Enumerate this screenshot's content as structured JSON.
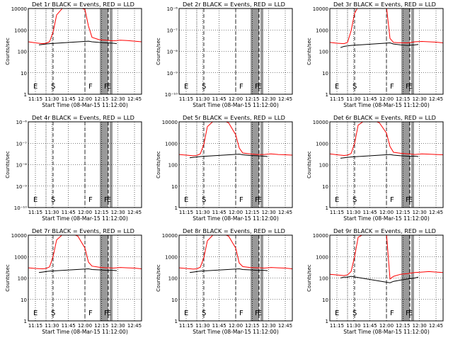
{
  "figure": {
    "background": "#ffffff",
    "axis_color": "#000000",
    "events_color": "#000000",
    "lld_color": "#ff0000"
  },
  "chart_data": [
    {
      "type": "line",
      "detector": "1r",
      "title": "Det 1r BLACK = Events, RED = LLD",
      "ylabel": "Counts/sec",
      "xlabel": "Start Time (08-Mar-15 11:12:00)",
      "xlim": [
        11.2,
        12.8
      ],
      "ylim": [
        1,
        10000
      ],
      "yscale": "log",
      "xticks": [
        "11:15",
        "11:30",
        "11:45",
        "12:00",
        "12:15",
        "12:30",
        "12:45"
      ],
      "yticks": [
        "1",
        "10",
        "100",
        "1000",
        "10000"
      ],
      "markers": [
        {
          "label": "E",
          "x": 11.27
        },
        {
          "label": "S",
          "x": 11.52
        },
        {
          "label": "F",
          "x": 12.05
        },
        {
          "label": "F",
          "x": 12.27
        },
        {
          "label": "E",
          "x": 12.31
        }
      ],
      "series": [
        {
          "name": "LLD",
          "color": "#ff0000",
          "x": [
            11.2,
            11.3,
            11.4,
            11.45,
            11.5,
            11.55,
            11.6,
            11.7,
            11.8,
            11.9,
            12.0,
            12.05,
            12.1,
            12.2,
            12.3,
            12.35,
            12.4,
            12.5,
            12.6,
            12.7,
            12.8
          ],
          "y": [
            280,
            250,
            230,
            240,
            280,
            800,
            5000,
            12000,
            12000,
            12000,
            9000,
            1500,
            450,
            350,
            330,
            320,
            310,
            330,
            320,
            300,
            280
          ]
        },
        {
          "name": "Events",
          "color": "#000000",
          "x": [
            11.35,
            11.4,
            11.45,
            11.5,
            12.05,
            12.1,
            12.2,
            12.3,
            12.4,
            12.45
          ],
          "y": [
            200,
            210,
            220,
            230,
            300,
            280,
            260,
            250,
            240,
            230
          ]
        }
      ]
    },
    {
      "type": "line",
      "detector": "2r",
      "title": "Det 2r BLACK = Events, RED = LLD",
      "ylabel": "Counts/sec",
      "xlabel": "Start Time (08-Mar-15 11:12:00)",
      "xlim": [
        11.2,
        12.8
      ],
      "ylim": [
        1e-10,
        1e-06
      ],
      "yscale": "log",
      "xticks": [
        "11:15",
        "11:30",
        "11:45",
        "12:00",
        "12:15",
        "12:30",
        "12:45"
      ],
      "yticks": [
        "10⁻¹⁰",
        "10⁻⁹",
        "10⁻⁸",
        "10⁻⁷",
        "10⁻⁶"
      ],
      "markers": [
        {
          "label": "E",
          "x": 11.27
        },
        {
          "label": "S",
          "x": 11.52
        },
        {
          "label": "F",
          "x": 12.05
        },
        {
          "label": "F",
          "x": 12.27
        },
        {
          "label": "E",
          "x": 12.31
        }
      ],
      "series": []
    },
    {
      "type": "line",
      "detector": "3r",
      "title": "Det 3r BLACK = Events, RED = LLD",
      "ylabel": "Counts/sec",
      "xlabel": "Start Time (08-Mar-15 11:12:00)",
      "xlim": [
        11.2,
        12.8
      ],
      "ylim": [
        1,
        10000
      ],
      "yscale": "log",
      "xticks": [
        "11:15",
        "11:30",
        "11:45",
        "12:00",
        "12:15",
        "12:30",
        "12:45"
      ],
      "yticks": [
        "1",
        "10",
        "100",
        "1000",
        "10000"
      ],
      "markers": [
        {
          "label": "E",
          "x": 11.27
        },
        {
          "label": "S",
          "x": 11.52
        },
        {
          "label": "F",
          "x": 12.05
        },
        {
          "label": "F",
          "x": 12.27
        },
        {
          "label": "E",
          "x": 12.31
        }
      ],
      "series": [
        {
          "name": "LLD",
          "color": "#ff0000",
          "x": [
            11.2,
            11.3,
            11.4,
            11.45,
            11.5,
            11.55,
            11.6,
            11.7,
            11.8,
            11.9,
            12.0,
            12.05,
            12.1,
            12.2,
            12.3,
            12.35,
            12.4,
            12.5,
            12.6,
            12.7,
            12.8
          ],
          "y": [
            260,
            240,
            230,
            260,
            900,
            6000,
            12000,
            12000,
            12000,
            12000,
            12000,
            400,
            260,
            250,
            250,
            260,
            280,
            290,
            280,
            270,
            250
          ]
        },
        {
          "name": "Events",
          "color": "#000000",
          "x": [
            11.35,
            11.4,
            11.45,
            11.5,
            12.05,
            12.1,
            12.2,
            12.3,
            12.4,
            12.45
          ],
          "y": [
            150,
            170,
            180,
            190,
            250,
            220,
            200,
            190,
            200,
            210
          ]
        }
      ]
    },
    {
      "type": "line",
      "detector": "4r",
      "title": "Det 4r BLACK = Events, RED = LLD",
      "ylabel": "Counts/sec",
      "xlabel": "Start Time (08-Mar-15 11:12:00)",
      "xlim": [
        11.2,
        12.8
      ],
      "ylim": [
        1e-10,
        1e-06
      ],
      "yscale": "log",
      "xticks": [
        "11:15",
        "11:30",
        "11:45",
        "12:00",
        "12:15",
        "12:30",
        "12:45"
      ],
      "yticks": [
        "10⁻¹⁰",
        "10⁻⁹",
        "10⁻⁸",
        "10⁻⁷",
        "10⁻⁶"
      ],
      "markers": [
        {
          "label": "E",
          "x": 11.27
        },
        {
          "label": "S",
          "x": 11.52
        },
        {
          "label": "F",
          "x": 12.05
        },
        {
          "label": "F",
          "x": 12.27
        },
        {
          "label": "E",
          "x": 12.31
        }
      ],
      "series": []
    },
    {
      "type": "line",
      "detector": "5r",
      "title": "Det 5r BLACK = Events, RED = LLD",
      "ylabel": "Counts/sec",
      "xlabel": "Start Time (08-Mar-15 11:12:00)",
      "xlim": [
        11.2,
        12.8
      ],
      "ylim": [
        1,
        10000
      ],
      "yscale": "log",
      "xticks": [
        "11:15",
        "11:30",
        "11:45",
        "12:00",
        "12:15",
        "12:30",
        "12:45"
      ],
      "yticks": [
        "1",
        "10",
        "100",
        "1000",
        "10000"
      ],
      "markers": [
        {
          "label": "E",
          "x": 11.27
        },
        {
          "label": "S",
          "x": 11.52
        },
        {
          "label": "F",
          "x": 12.05
        },
        {
          "label": "F",
          "x": 12.27
        },
        {
          "label": "E",
          "x": 12.31
        }
      ],
      "series": [
        {
          "name": "LLD",
          "color": "#ff0000",
          "x": [
            11.2,
            11.3,
            11.4,
            11.45,
            11.5,
            11.55,
            11.6,
            11.7,
            11.8,
            11.9,
            12.0,
            12.05,
            12.1,
            12.2,
            12.3,
            12.35,
            12.4,
            12.5,
            12.6,
            12.7,
            12.8
          ],
          "y": [
            300,
            280,
            260,
            270,
            320,
            900,
            6000,
            12000,
            12000,
            9000,
            2500,
            600,
            350,
            320,
            300,
            300,
            300,
            320,
            300,
            290,
            280
          ]
        },
        {
          "name": "Events",
          "color": "#000000",
          "x": [
            11.35,
            11.4,
            11.45,
            11.5,
            12.05,
            12.1,
            12.2,
            12.3,
            12.4,
            12.45
          ],
          "y": [
            210,
            220,
            230,
            240,
            310,
            290,
            270,
            260,
            250,
            240
          ]
        }
      ]
    },
    {
      "type": "line",
      "detector": "6r",
      "title": "Det 6r BLACK = Events, RED = LLD",
      "ylabel": "Counts/sec",
      "xlabel": "Start Time (08-Mar-15 11:12:00)",
      "xlim": [
        11.2,
        12.8
      ],
      "ylim": [
        1,
        10000
      ],
      "yscale": "log",
      "xticks": [
        "11:15",
        "11:30",
        "11:45",
        "12:00",
        "12:15",
        "12:30",
        "12:45"
      ],
      "yticks": [
        "1",
        "10",
        "100",
        "1000",
        "10000"
      ],
      "markers": [
        {
          "label": "E",
          "x": 11.27
        },
        {
          "label": "S",
          "x": 11.52
        },
        {
          "label": "F",
          "x": 12.05
        },
        {
          "label": "F",
          "x": 12.27
        },
        {
          "label": "E",
          "x": 12.31
        }
      ],
      "series": [
        {
          "name": "LLD",
          "color": "#ff0000",
          "x": [
            11.2,
            11.3,
            11.4,
            11.45,
            11.5,
            11.55,
            11.6,
            11.7,
            11.8,
            11.9,
            12.0,
            12.05,
            12.1,
            12.2,
            12.3,
            12.35,
            12.4,
            12.5,
            12.6,
            12.7,
            12.8
          ],
          "y": [
            320,
            290,
            270,
            280,
            330,
            1000,
            7000,
            12000,
            12000,
            9000,
            3000,
            700,
            380,
            340,
            320,
            310,
            300,
            320,
            310,
            300,
            290
          ]
        },
        {
          "name": "Events",
          "color": "#000000",
          "x": [
            11.35,
            11.4,
            11.45,
            11.5,
            12.05,
            12.1,
            12.2,
            12.3,
            12.4,
            12.45
          ],
          "y": [
            200,
            210,
            220,
            230,
            300,
            280,
            260,
            250,
            250,
            240
          ]
        }
      ]
    },
    {
      "type": "line",
      "detector": "7r",
      "title": "Det 7r BLACK = Events, RED = LLD",
      "ylabel": "Counts/sec",
      "xlabel": "Start Time (08-Mar-15 11:12:00)",
      "xlim": [
        11.2,
        12.8
      ],
      "ylim": [
        1,
        10000
      ],
      "yscale": "log",
      "xticks": [
        "11:15",
        "11:30",
        "11:45",
        "12:00",
        "12:15",
        "12:30",
        "12:45"
      ],
      "yticks": [
        "1",
        "10",
        "100",
        "1000",
        "10000"
      ],
      "markers": [
        {
          "label": "E",
          "x": 11.27
        },
        {
          "label": "S",
          "x": 11.52
        },
        {
          "label": "F",
          "x": 12.05
        },
        {
          "label": "F",
          "x": 12.27
        },
        {
          "label": "E",
          "x": 12.31
        }
      ],
      "series": [
        {
          "name": "LLD",
          "color": "#ff0000",
          "x": [
            11.2,
            11.3,
            11.4,
            11.45,
            11.5,
            11.55,
            11.6,
            11.7,
            11.8,
            11.9,
            12.0,
            12.05,
            12.1,
            12.2,
            12.3,
            12.35,
            12.4,
            12.5,
            12.6,
            12.7,
            12.8
          ],
          "y": [
            300,
            280,
            270,
            280,
            330,
            1000,
            6000,
            12000,
            12000,
            9000,
            2500,
            550,
            360,
            320,
            300,
            300,
            290,
            310,
            300,
            290,
            270
          ]
        },
        {
          "name": "Events",
          "color": "#000000",
          "x": [
            11.35,
            11.4,
            11.45,
            11.5,
            12.05,
            12.1,
            12.2,
            12.3,
            12.4,
            12.45
          ],
          "y": [
            180,
            190,
            200,
            210,
            270,
            250,
            240,
            230,
            230,
            220
          ]
        }
      ]
    },
    {
      "type": "line",
      "detector": "8r",
      "title": "Det 8r BLACK = Events, RED = LLD",
      "ylabel": "Counts/sec",
      "xlabel": "Start Time (08-Mar-15 11:12:00)",
      "xlim": [
        11.2,
        12.8
      ],
      "ylim": [
        1,
        10000
      ],
      "yscale": "log",
      "xticks": [
        "11:15",
        "11:30",
        "11:45",
        "12:00",
        "12:15",
        "12:30",
        "12:45"
      ],
      "yticks": [
        "1",
        "10",
        "100",
        "1000",
        "10000"
      ],
      "markers": [
        {
          "label": "E",
          "x": 11.27
        },
        {
          "label": "S",
          "x": 11.52
        },
        {
          "label": "F",
          "x": 12.05
        },
        {
          "label": "F",
          "x": 12.27
        },
        {
          "label": "E",
          "x": 12.31
        }
      ],
      "series": [
        {
          "name": "LLD",
          "color": "#ff0000",
          "x": [
            11.2,
            11.3,
            11.4,
            11.45,
            11.5,
            11.55,
            11.6,
            11.7,
            11.8,
            11.9,
            12.0,
            12.05,
            12.1,
            12.2,
            12.3,
            12.35,
            12.4,
            12.5,
            12.6,
            12.7,
            12.8
          ],
          "y": [
            300,
            280,
            260,
            270,
            320,
            900,
            5500,
            12000,
            12000,
            9000,
            2500,
            500,
            340,
            310,
            300,
            300,
            290,
            310,
            300,
            290,
            270
          ]
        },
        {
          "name": "Events",
          "color": "#000000",
          "x": [
            11.35,
            11.4,
            11.45,
            11.5,
            12.05,
            12.1,
            12.2,
            12.3,
            12.4,
            12.45
          ],
          "y": [
            180,
            190,
            200,
            210,
            270,
            250,
            240,
            230,
            230,
            220
          ]
        }
      ]
    },
    {
      "type": "line",
      "detector": "9r",
      "title": "Det 9r BLACK = Events, RED = LLD",
      "ylabel": "Counts/sec",
      "xlabel": "Start Time (08-Mar-15 11:12:00)",
      "xlim": [
        11.2,
        12.8
      ],
      "ylim": [
        1,
        10000
      ],
      "yscale": "log",
      "xticks": [
        "11:15",
        "11:30",
        "11:45",
        "12:00",
        "12:15",
        "12:30",
        "12:45"
      ],
      "yticks": [
        "1",
        "10",
        "100",
        "1000",
        "10000"
      ],
      "markers": [
        {
          "label": "E",
          "x": 11.27
        },
        {
          "label": "S",
          "x": 11.52
        },
        {
          "label": "F",
          "x": 12.05
        },
        {
          "label": "F",
          "x": 12.27
        },
        {
          "label": "E",
          "x": 12.31
        }
      ],
      "series": [
        {
          "name": "LLD",
          "color": "#ff0000",
          "x": [
            11.2,
            11.3,
            11.4,
            11.45,
            11.5,
            11.55,
            11.6,
            11.7,
            11.8,
            11.9,
            12.0,
            12.05,
            12.1,
            12.2,
            12.3,
            12.35,
            12.4,
            12.5,
            12.6,
            12.7,
            12.8
          ],
          "y": [
            150,
            140,
            130,
            140,
            200,
            1000,
            8000,
            12000,
            12000,
            12000,
            12000,
            90,
            120,
            150,
            160,
            170,
            180,
            190,
            200,
            190,
            180
          ]
        },
        {
          "name": "Events",
          "color": "#000000",
          "x": [
            11.35,
            11.4,
            11.45,
            11.5,
            12.05,
            12.1,
            12.2,
            12.3,
            12.4,
            12.45
          ],
          "y": [
            100,
            110,
            110,
            120,
            60,
            70,
            80,
            90,
            100,
            110
          ]
        }
      ]
    }
  ]
}
